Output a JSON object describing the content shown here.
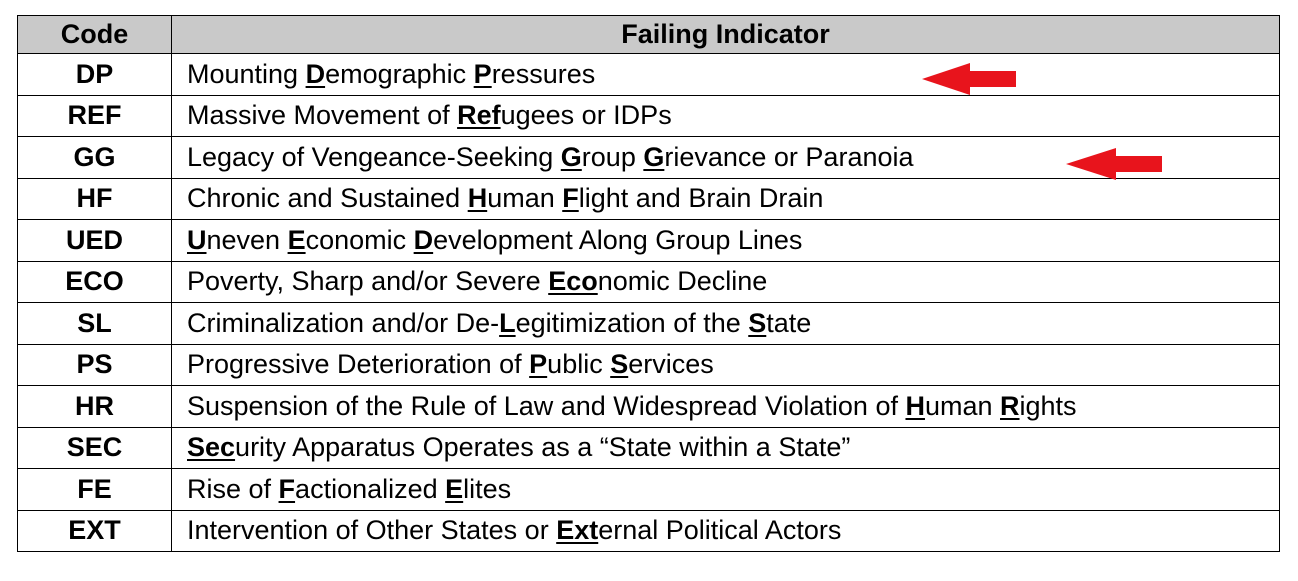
{
  "table": {
    "headers": {
      "code": "Code",
      "indicator": "Failing Indicator"
    },
    "rows": [
      {
        "code": "DP",
        "parts": [
          {
            "t": "Mounting "
          },
          {
            "t": "D",
            "b": true
          },
          {
            "t": "emographic "
          },
          {
            "t": "P",
            "b": true
          },
          {
            "t": "ressures"
          }
        ],
        "arrow": true
      },
      {
        "code": "REF",
        "parts": [
          {
            "t": "Massive Movement of "
          },
          {
            "t": "Ref",
            "b": true
          },
          {
            "t": "ugees or IDPs"
          }
        ]
      },
      {
        "code": "GG",
        "parts": [
          {
            "t": "Legacy of Vengeance-Seeking "
          },
          {
            "t": "G",
            "b": true
          },
          {
            "t": "roup "
          },
          {
            "t": "G",
            "b": true
          },
          {
            "t": "rievance or Paranoia"
          }
        ],
        "arrow": true
      },
      {
        "code": "HF",
        "parts": [
          {
            "t": "Chronic and Sustained "
          },
          {
            "t": "H",
            "b": true
          },
          {
            "t": "uman "
          },
          {
            "t": "F",
            "b": true
          },
          {
            "t": "light and Brain Drain"
          }
        ]
      },
      {
        "code": "UED",
        "parts": [
          {
            "t": "U",
            "b": true
          },
          {
            "t": "neven "
          },
          {
            "t": "E",
            "b": true
          },
          {
            "t": "conomic "
          },
          {
            "t": "D",
            "b": true
          },
          {
            "t": "evelopment Along Group Lines"
          }
        ]
      },
      {
        "code": "ECO",
        "parts": [
          {
            "t": "Poverty, Sharp and/or Severe "
          },
          {
            "t": "Eco",
            "b": true
          },
          {
            "t": "nomic Decline"
          }
        ]
      },
      {
        "code": "SL",
        "parts": [
          {
            "t": "Criminalization and/or De-"
          },
          {
            "t": "L",
            "b": true
          },
          {
            "t": "egitimization of the "
          },
          {
            "t": "S",
            "b": true
          },
          {
            "t": "tate"
          }
        ]
      },
      {
        "code": "PS",
        "parts": [
          {
            "t": "Progressive Deterioration of "
          },
          {
            "t": "P",
            "b": true
          },
          {
            "t": "ublic "
          },
          {
            "t": "S",
            "b": true
          },
          {
            "t": "ervices"
          }
        ]
      },
      {
        "code": "HR",
        "parts": [
          {
            "t": "Suspension of the Rule of Law and Widespread Violation of "
          },
          {
            "t": "H",
            "b": true
          },
          {
            "t": "uman "
          },
          {
            "t": "R",
            "b": true
          },
          {
            "t": "ights"
          }
        ]
      },
      {
        "code": "SEC",
        "parts": [
          {
            "t": "Sec",
            "b": true
          },
          {
            "t": "urity Apparatus Operates as a “State within a State”"
          }
        ]
      },
      {
        "code": "FE",
        "parts": [
          {
            "t": "Rise of "
          },
          {
            "t": "F",
            "b": true
          },
          {
            "t": "actionalized "
          },
          {
            "t": "E",
            "b": true
          },
          {
            "t": "lites"
          }
        ]
      },
      {
        "code": "EXT",
        "parts": [
          {
            "t": "Intervention of Other States or "
          },
          {
            "t": "Ext",
            "b": true
          },
          {
            "t": "ernal Political Actors"
          }
        ]
      }
    ]
  },
  "colors": {
    "header_bg": "#c9c9c9",
    "arrow": "#e8141c",
    "border": "#000000"
  },
  "icons": {
    "annotation_arrow": "left-arrow-icon"
  }
}
